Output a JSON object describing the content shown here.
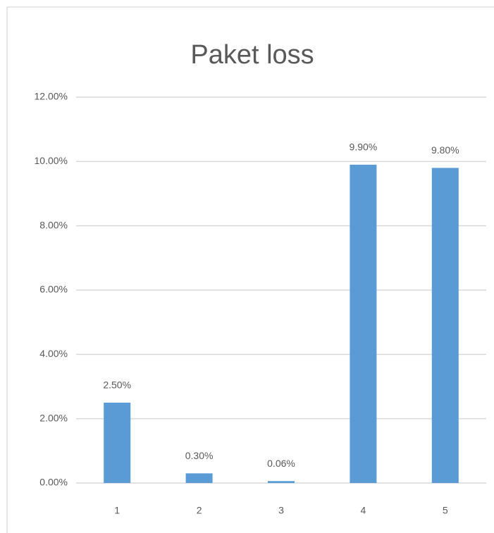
{
  "chart_data": {
    "type": "bar",
    "title": "Paket loss",
    "categories": [
      "1",
      "2",
      "3",
      "4",
      "5"
    ],
    "values": [
      2.5,
      0.3,
      0.06,
      9.9,
      9.8
    ],
    "value_labels": [
      "2.50%",
      "0.30%",
      "0.06%",
      "9.90%",
      "9.80%"
    ],
    "color": "#5b9bd5",
    "ylim": [
      0,
      12
    ],
    "yticks": [
      {
        "value": 0,
        "label": "0.00%"
      },
      {
        "value": 2,
        "label": "2.00%"
      },
      {
        "value": 4,
        "label": "4.00%"
      },
      {
        "value": 6,
        "label": "6.00%"
      },
      {
        "value": 8,
        "label": "8.00%"
      },
      {
        "value": 10,
        "label": "10.00%"
      },
      {
        "value": 12,
        "label": "12.00%"
      }
    ],
    "grid": true
  }
}
